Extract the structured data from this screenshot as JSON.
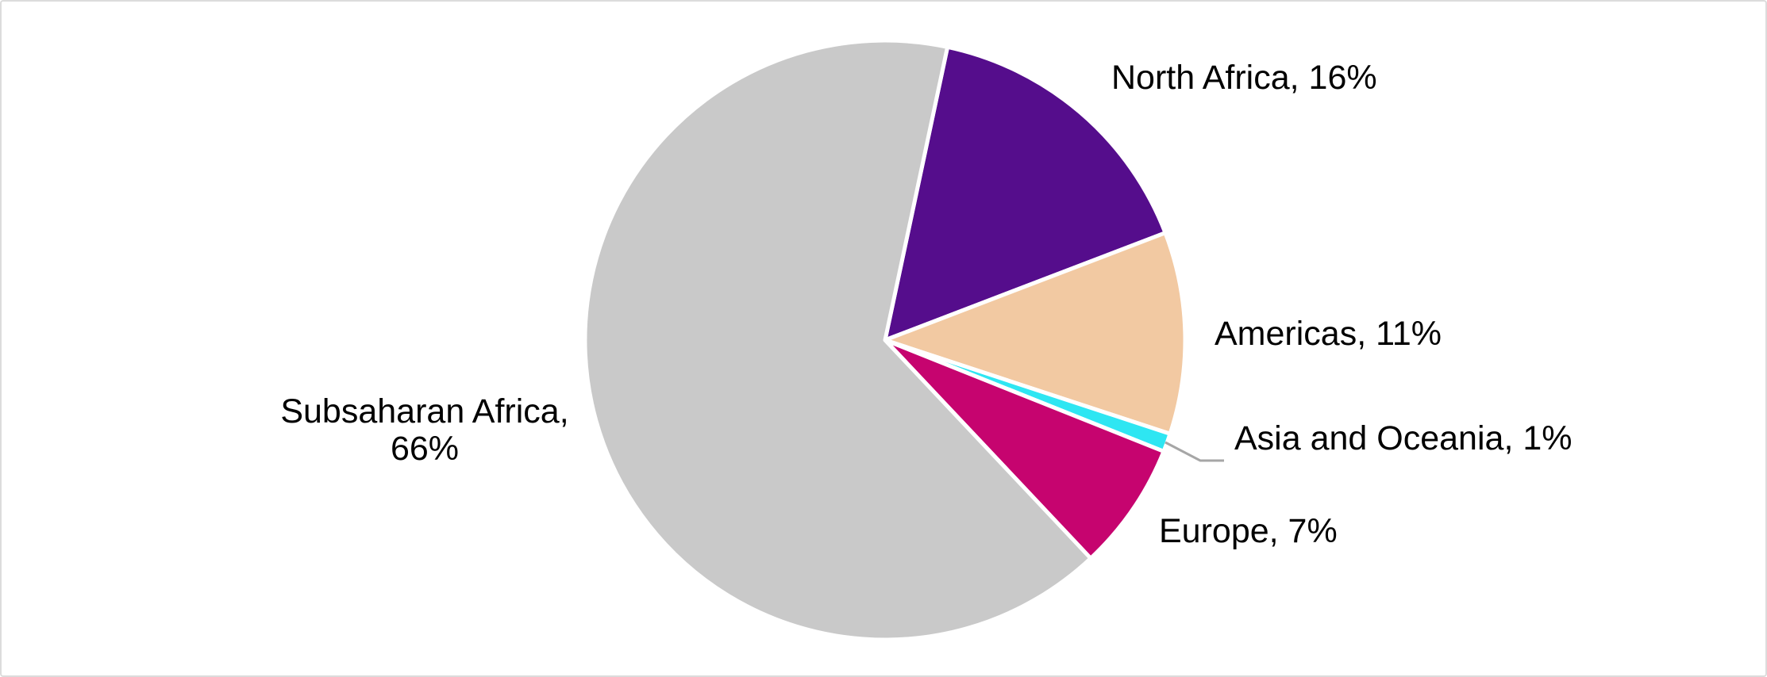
{
  "canvas": {
    "background": "#FFFFFF",
    "border_color": "#DCDCDC"
  },
  "chart_data": {
    "type": "pie",
    "title": "",
    "categories": [
      "North Africa",
      "Americas",
      "Asia and Oceania",
      "Europe",
      "Subsaharan Africa"
    ],
    "values": [
      16,
      11,
      1,
      7,
      66
    ],
    "value_unit": "%",
    "colors": [
      "#550D8C",
      "#F2C9A2",
      "#2EE6F2",
      "#C6046F",
      "#C9C9C9"
    ],
    "slice_border_color": "#FFFFFF",
    "start_angle_deg": 12,
    "direction": "clockwise",
    "legend": "none",
    "grid": "off",
    "data_labels": [
      "North Africa, 16%",
      "Americas, 11%",
      "Asia and Oceania, 1%",
      "Europe, 7%",
      "Subsaharan Africa, 66%"
    ],
    "label_text_color": "#000000",
    "leader_line_color": "#A6A6A6"
  }
}
